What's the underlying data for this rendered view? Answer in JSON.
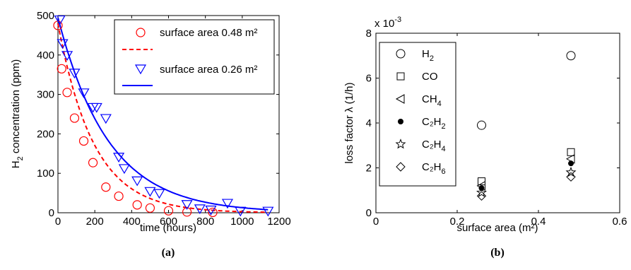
{
  "chart_data": [
    {
      "type": "scatter",
      "panel_label": "(a)",
      "xlabel": "time (hours)",
      "ylabel_main": "H",
      "ylabel_sub": "2",
      "ylabel_rest": " concentration (ppm)",
      "xlim": [
        0,
        1200
      ],
      "ylim": [
        0,
        500
      ],
      "xticks": [
        0,
        200,
        400,
        600,
        800,
        1000,
        1200
      ],
      "yticks": [
        0,
        100,
        200,
        300,
        400,
        500
      ],
      "grid": false,
      "legend_position": "top-right",
      "series": [
        {
          "name": "surface area 0.48 m²",
          "marker": "circle",
          "color": "#ff0000",
          "x": [
            0,
            20,
            50,
            90,
            140,
            190,
            260,
            330,
            430,
            500,
            600,
            700,
            840
          ],
          "y": [
            475,
            365,
            305,
            240,
            182,
            127,
            65,
            42,
            20,
            12,
            5,
            2,
            1
          ]
        },
        {
          "name": "surface area 0.26 m²",
          "marker": "triangle-down",
          "color": "#0000ff",
          "x": [
            10,
            25,
            50,
            90,
            140,
            190,
            210,
            260,
            330,
            360,
            430,
            500,
            550,
            700,
            770,
            830,
            920,
            990,
            1140
          ],
          "y": [
            490,
            430,
            400,
            355,
            305,
            268,
            268,
            240,
            142,
            113,
            82,
            55,
            50,
            22,
            11,
            8,
            25,
            5,
            5
          ]
        }
      ],
      "fits": [
        {
          "color": "#ff0000",
          "style": "dashed",
          "a": 480,
          "k": 0.00517
        },
        {
          "color": "#0000ff",
          "style": "solid",
          "a": 495,
          "k": 0.00365
        }
      ]
    },
    {
      "type": "scatter",
      "panel_label": "(b)",
      "xlabel": "surface area (m²)",
      "ylabel": "loss factor λ (1/h)",
      "multiplier": "x 10",
      "multiplier_exp": "-3",
      "xlim": [
        0,
        0.6
      ],
      "ylim": [
        0,
        8
      ],
      "xticks": [
        "0",
        "0.2",
        "0.4",
        "0.6"
      ],
      "yticks": [
        "0",
        "2",
        "4",
        "6",
        "8"
      ],
      "grid": false,
      "legend_position": "top-left",
      "series": [
        {
          "name": "H",
          "sub": "2",
          "marker": "circle",
          "x": [
            0.26,
            0.48
          ],
          "y": [
            3.9,
            7.0
          ]
        },
        {
          "name": "CO",
          "sub": "",
          "marker": "square",
          "x": [
            0.26,
            0.48
          ],
          "y": [
            1.4,
            2.7
          ]
        },
        {
          "name": "CH",
          "sub": "4",
          "marker": "triangle-left",
          "x": [
            0.26,
            0.48
          ],
          "y": [
            1.2,
            2.4
          ]
        },
        {
          "name": "C₂H",
          "sub": "2",
          "marker": "dot",
          "x": [
            0.26,
            0.48
          ],
          "y": [
            1.1,
            2.2
          ]
        },
        {
          "name": "C₂H",
          "sub": "4",
          "marker": "star",
          "x": [
            0.26,
            0.48
          ],
          "y": [
            0.9,
            1.8
          ]
        },
        {
          "name": "C₂H",
          "sub": "6",
          "marker": "diamond",
          "x": [
            0.26,
            0.48
          ],
          "y": [
            0.75,
            1.6
          ]
        }
      ]
    }
  ]
}
